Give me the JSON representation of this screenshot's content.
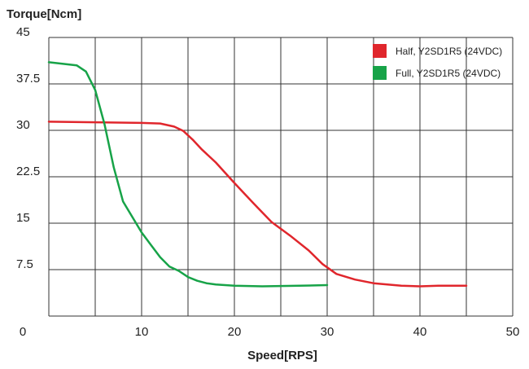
{
  "chart_data": {
    "type": "line",
    "title": "",
    "ylabel": "Torque[Ncm]",
    "xlabel": "Speed[RPS]",
    "xlim": [
      0,
      50
    ],
    "ylim": [
      0,
      45
    ],
    "xticks": [
      0,
      10,
      20,
      30,
      40,
      50
    ],
    "yticks": [
      7.5,
      15,
      22.5,
      30,
      37.5,
      45
    ],
    "xtick_labels": [
      "0",
      "10",
      "20",
      "30",
      "40",
      "50"
    ],
    "ytick_labels": [
      "7.5",
      "15",
      "22.5",
      "30",
      "37.5",
      "45"
    ],
    "grid": true,
    "legend_position": "top-right",
    "series": [
      {
        "name": "Half, Y2SD1R5 (24VDC)",
        "color": "#e0262c",
        "x": [
          0,
          5,
          10,
          12,
          13.5,
          14.5,
          15.5,
          16.5,
          18,
          20,
          22,
          24,
          26,
          28,
          29.5,
          31,
          33,
          35,
          38,
          40,
          42,
          45
        ],
        "y": [
          31.4,
          31.3,
          31.2,
          31.1,
          30.6,
          29.9,
          28.5,
          26.9,
          24.8,
          21.5,
          18.3,
          15.2,
          13.0,
          10.6,
          8.4,
          6.8,
          5.9,
          5.3,
          4.9,
          4.8,
          4.9,
          4.9
        ]
      },
      {
        "name": "Full, Y2SD1R5 (24VDC)",
        "color": "#17a348",
        "x": [
          0,
          3,
          4,
          5,
          6,
          7,
          8,
          9,
          10,
          11,
          12,
          13,
          14,
          15,
          16,
          17,
          18,
          20,
          23,
          27,
          30
        ],
        "y": [
          41.0,
          40.5,
          39.5,
          36.5,
          31.0,
          24.0,
          18.5,
          16.0,
          13.5,
          11.5,
          9.5,
          8.0,
          7.3,
          6.3,
          5.7,
          5.3,
          5.1,
          4.9,
          4.8,
          4.9,
          5.0
        ]
      }
    ]
  }
}
